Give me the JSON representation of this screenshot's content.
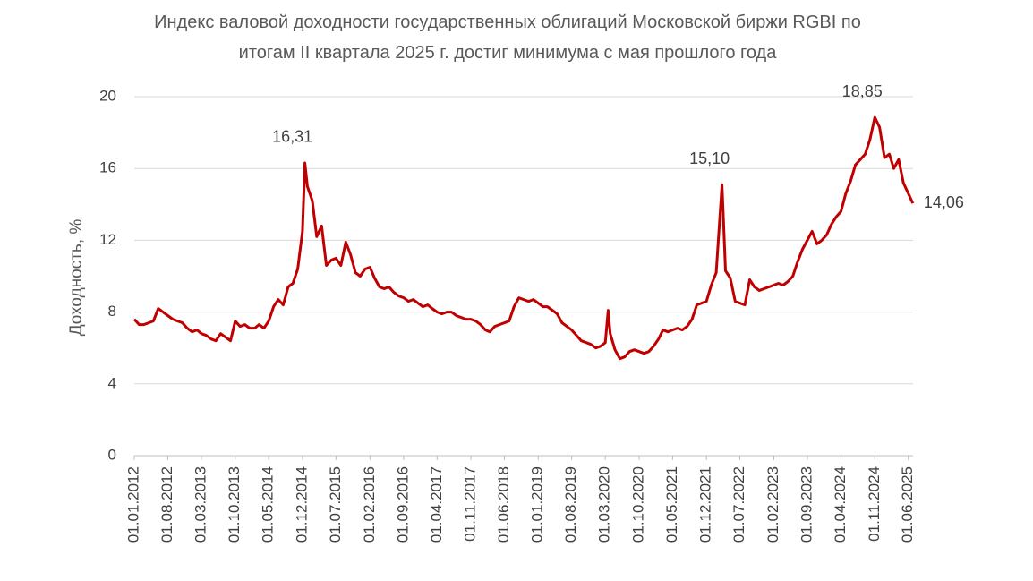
{
  "chart_data": {
    "type": "line",
    "title": "Индекс валовой доходности государственных облигаций Московской биржи RGBI по итогам II квартала 2025 г. достиг минимума с мая прошлого года",
    "y_label": "Доходность, %",
    "grid": true,
    "xlim": [
      "01.01.2012",
      "01.07.2025"
    ],
    "xticks": [
      "01.01.2012",
      "01.08.2012",
      "01.03.2013",
      "01.10.2013",
      "01.05.2014",
      "01.12.2014",
      "01.07.2015",
      "01.02.2016",
      "01.09.2016",
      "01.04.2017",
      "01.11.2017",
      "01.06.2018",
      "01.01.2019",
      "01.08.2019",
      "01.03.2020",
      "01.10.2020",
      "01.05.2021",
      "01.12.2021",
      "01.07.2022",
      "01.02.2023",
      "01.09.2023",
      "01.04.2024",
      "01.11.2024",
      "01.06.2025"
    ],
    "ylim": [
      0,
      20
    ],
    "yticks": [
      0,
      4,
      8,
      12,
      16,
      20
    ],
    "x": [
      "01.01.2012",
      "01.02.2012",
      "01.03.2012",
      "01.04.2012",
      "01.05.2012",
      "01.06.2012",
      "01.07.2012",
      "01.08.2012",
      "01.09.2012",
      "01.10.2012",
      "01.11.2012",
      "01.12.2012",
      "01.01.2013",
      "01.02.2013",
      "01.03.2013",
      "01.04.2013",
      "01.05.2013",
      "01.06.2013",
      "01.07.2013",
      "01.08.2013",
      "01.09.2013",
      "01.10.2013",
      "01.11.2013",
      "01.12.2013",
      "01.01.2014",
      "01.02.2014",
      "01.03.2014",
      "01.04.2014",
      "01.05.2014",
      "01.06.2014",
      "01.07.2014",
      "01.08.2014",
      "01.09.2014",
      "01.10.2014",
      "01.11.2014",
      "01.12.2014",
      "16.12.2014",
      "01.01.2015",
      "01.02.2015",
      "01.03.2015",
      "01.04.2015",
      "01.05.2015",
      "01.06.2015",
      "01.07.2015",
      "01.08.2015",
      "01.09.2015",
      "01.10.2015",
      "01.11.2015",
      "01.12.2015",
      "01.01.2016",
      "01.02.2016",
      "01.03.2016",
      "01.04.2016",
      "01.05.2016",
      "01.06.2016",
      "01.07.2016",
      "01.08.2016",
      "01.09.2016",
      "01.10.2016",
      "01.11.2016",
      "01.12.2016",
      "01.01.2017",
      "01.02.2017",
      "01.03.2017",
      "01.04.2017",
      "01.05.2017",
      "01.06.2017",
      "01.07.2017",
      "01.08.2017",
      "01.09.2017",
      "01.10.2017",
      "01.11.2017",
      "01.12.2017",
      "01.01.2018",
      "01.02.2018",
      "01.03.2018",
      "01.04.2018",
      "01.05.2018",
      "01.06.2018",
      "01.07.2018",
      "01.08.2018",
      "01.09.2018",
      "01.10.2018",
      "01.11.2018",
      "01.12.2018",
      "01.01.2019",
      "01.02.2019",
      "01.03.2019",
      "01.04.2019",
      "01.05.2019",
      "01.06.2019",
      "01.07.2019",
      "01.08.2019",
      "01.09.2019",
      "01.10.2019",
      "01.11.2019",
      "01.12.2019",
      "01.01.2020",
      "01.02.2020",
      "01.03.2020",
      "19.03.2020",
      "01.04.2020",
      "01.05.2020",
      "01.06.2020",
      "01.07.2020",
      "01.08.2020",
      "01.09.2020",
      "01.10.2020",
      "01.11.2020",
      "01.12.2020",
      "01.01.2021",
      "01.02.2021",
      "01.03.2021",
      "01.04.2021",
      "01.05.2021",
      "01.06.2021",
      "01.07.2021",
      "01.08.2021",
      "01.09.2021",
      "01.10.2021",
      "01.11.2021",
      "01.12.2021",
      "01.01.2022",
      "01.02.2022",
      "10.03.2022",
      "01.04.2022",
      "01.05.2022",
      "01.06.2022",
      "01.07.2022",
      "01.08.2022",
      "01.09.2022",
      "01.10.2022",
      "01.11.2022",
      "01.12.2022",
      "01.01.2023",
      "01.02.2023",
      "01.03.2023",
      "01.04.2023",
      "01.05.2023",
      "01.06.2023",
      "01.07.2023",
      "01.08.2023",
      "01.09.2023",
      "01.10.2023",
      "01.11.2023",
      "01.12.2023",
      "01.01.2024",
      "01.02.2024",
      "01.03.2024",
      "01.04.2024",
      "01.05.2024",
      "01.06.2024",
      "01.07.2024",
      "01.08.2024",
      "01.09.2024",
      "01.10.2024",
      "01.11.2024",
      "01.12.2024",
      "01.01.2025",
      "01.02.2025",
      "01.03.2025",
      "01.04.2025",
      "01.05.2025",
      "30.06.2025"
    ],
    "series": [
      {
        "color": "#c00000",
        "values": [
          7.6,
          7.3,
          7.3,
          7.4,
          7.5,
          8.2,
          8.0,
          7.8,
          7.6,
          7.5,
          7.4,
          7.1,
          6.9,
          7.0,
          6.8,
          6.7,
          6.5,
          6.4,
          6.8,
          6.6,
          6.4,
          7.5,
          7.2,
          7.3,
          7.1,
          7.1,
          7.3,
          7.1,
          7.5,
          8.3,
          8.7,
          8.4,
          9.4,
          9.6,
          10.4,
          12.5,
          16.31,
          15.0,
          14.2,
          12.2,
          12.8,
          10.6,
          10.9,
          11.0,
          10.6,
          11.9,
          11.2,
          10.2,
          10.0,
          10.4,
          10.5,
          9.9,
          9.4,
          9.3,
          9.4,
          9.1,
          8.9,
          8.8,
          8.6,
          8.7,
          8.5,
          8.3,
          8.4,
          8.2,
          8.0,
          7.9,
          8.0,
          8.0,
          7.8,
          7.7,
          7.6,
          7.6,
          7.5,
          7.3,
          7.0,
          6.9,
          7.2,
          7.3,
          7.4,
          7.5,
          8.3,
          8.8,
          8.7,
          8.6,
          8.7,
          8.5,
          8.3,
          8.3,
          8.1,
          7.9,
          7.4,
          7.2,
          7.0,
          6.7,
          6.4,
          6.3,
          6.2,
          6.0,
          6.1,
          6.3,
          8.1,
          6.8,
          5.9,
          5.4,
          5.5,
          5.8,
          5.9,
          5.8,
          5.7,
          5.8,
          6.1,
          6.5,
          7.0,
          6.9,
          7.0,
          7.1,
          7.0,
          7.2,
          7.6,
          8.4,
          8.5,
          8.6,
          9.5,
          10.2,
          15.1,
          10.3,
          9.9,
          8.6,
          8.5,
          8.4,
          9.8,
          9.4,
          9.2,
          9.3,
          9.4,
          9.5,
          9.6,
          9.5,
          9.7,
          10.0,
          10.8,
          11.5,
          12.0,
          12.5,
          11.8,
          12.0,
          12.3,
          12.9,
          13.3,
          13.6,
          14.6,
          15.3,
          16.2,
          16.5,
          16.8,
          17.6,
          18.85,
          18.3,
          16.6,
          16.8,
          16.0,
          16.5,
          15.2,
          14.06
        ]
      }
    ],
    "annotations": [
      {
        "x": "16.12.2014",
        "value": 16.31,
        "label": "16,31"
      },
      {
        "x": "10.03.2022",
        "value": 15.1,
        "label": "15,10"
      },
      {
        "x": "01.11.2024",
        "value": 18.85,
        "label": "18,85"
      },
      {
        "x": "30.06.2025",
        "value": 14.06,
        "label": "14,06"
      }
    ]
  }
}
